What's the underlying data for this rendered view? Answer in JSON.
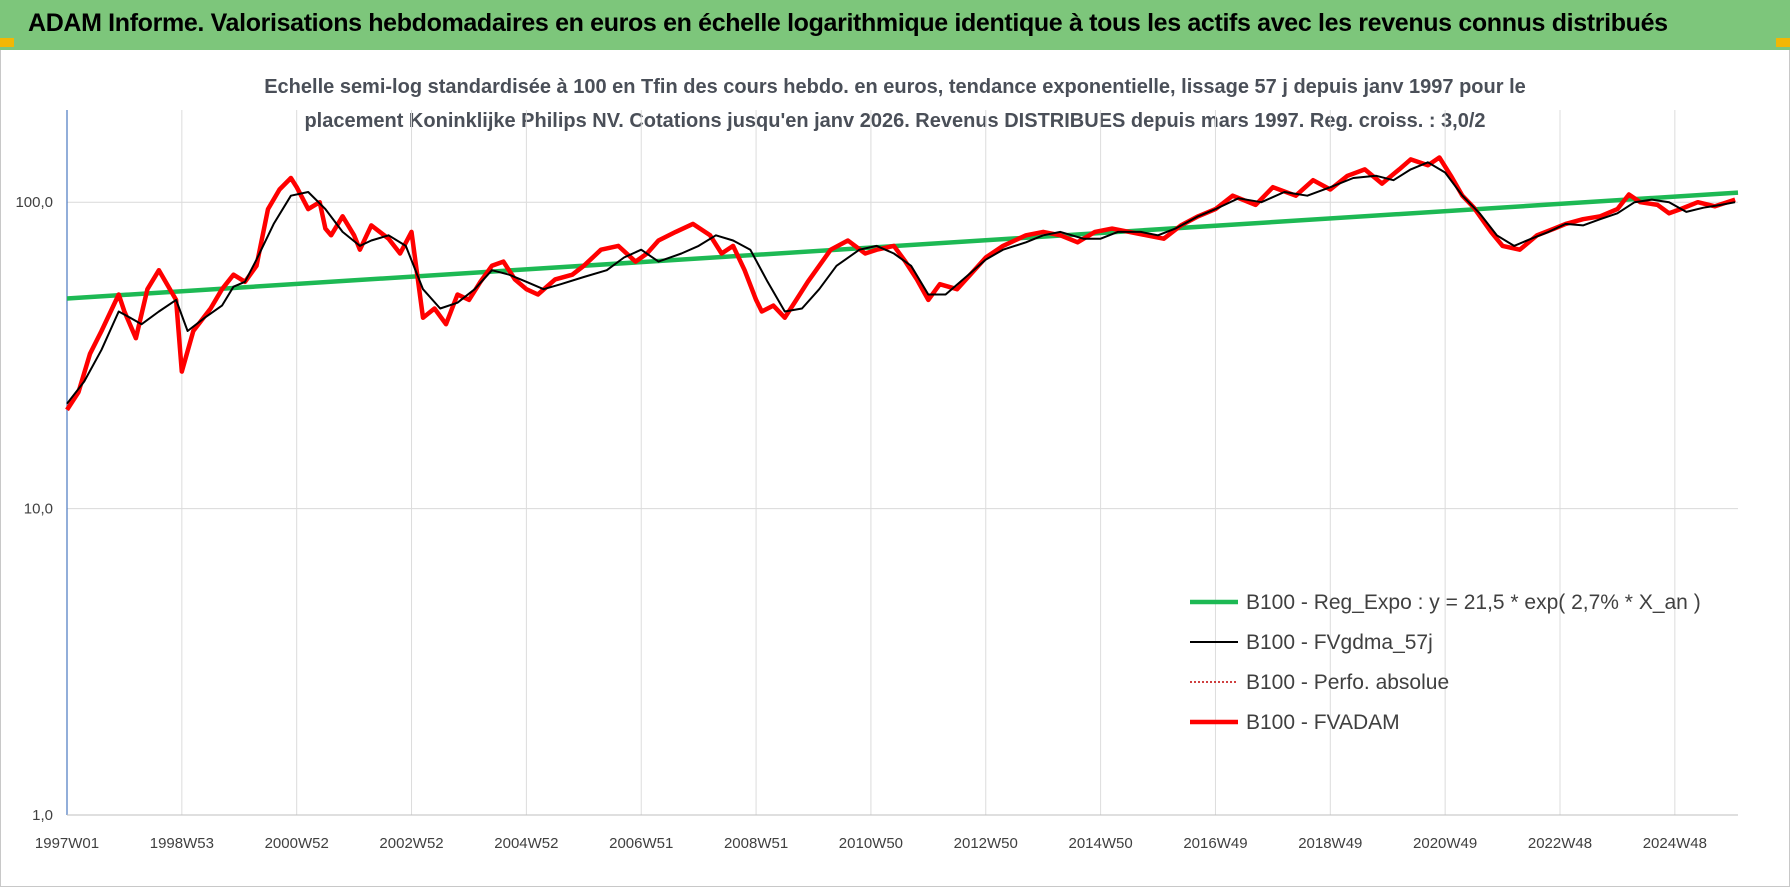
{
  "banner": {
    "title": "ADAM Informe. Valorisations hebdomadaires en euros en échelle logarithmique identique à tous les actifs avec les revenus connus distribués",
    "color": "#7dc67b"
  },
  "chart_data": {
    "type": "line",
    "title_line1": "Echelle semi-log standardisée à 100 en Tfin des cours hebdo. en euros, tendance exponentielle, lissage 57 j depuis janv 1997 pour le",
    "title_line2": "placement Koninklijke Philips NV. Cotations jusqu'en janv 2026. Revenus DISTRIBUES depuis mars 1997. Reg. croiss. : 3,0/2",
    "y_scale": "log",
    "ylim": [
      1,
      200
    ],
    "xlim": [
      1997.0,
      2026.1
    ],
    "y_ticks": [
      {
        "value": 100,
        "label": "100,0"
      },
      {
        "value": 10,
        "label": "10,0"
      },
      {
        "value": 1,
        "label": "1,0"
      }
    ],
    "x_ticks": [
      {
        "value": 1997.0,
        "label": "1997W01"
      },
      {
        "value": 1999.0,
        "label": "1998W53"
      },
      {
        "value": 2001.0,
        "label": "2000W52"
      },
      {
        "value": 2003.0,
        "label": "2002W52"
      },
      {
        "value": 2005.0,
        "label": "2004W52"
      },
      {
        "value": 2007.0,
        "label": "2006W51"
      },
      {
        "value": 2009.0,
        "label": "2008W51"
      },
      {
        "value": 2011.0,
        "label": "2010W50"
      },
      {
        "value": 2013.0,
        "label": "2012W50"
      },
      {
        "value": 2015.0,
        "label": "2014W50"
      },
      {
        "value": 2017.0,
        "label": "2016W49"
      },
      {
        "value": 2019.0,
        "label": "2018W49"
      },
      {
        "value": 2021.0,
        "label": "2020W49"
      },
      {
        "value": 2023.0,
        "label": "2022W48"
      },
      {
        "value": 2025.0,
        "label": "2024W48"
      }
    ],
    "grid": true,
    "legend_position": "bottom-right",
    "series": [
      {
        "name": "B100 - Reg_Expo : y = 21,5 * exp( 2,7% *  X_an )",
        "color": "#1db954",
        "style": "solid-thick",
        "x": [
          1997.0,
          2026.1
        ],
        "values": [
          48.5,
          107.5
        ]
      },
      {
        "name": "B100 - FVgdma_57j",
        "color": "#000000",
        "style": "solid",
        "x": [
          1997.0,
          1997.3,
          1997.6,
          1997.9,
          1998.1,
          1998.3,
          1998.6,
          1998.9,
          1999.1,
          1999.4,
          1999.7,
          1999.9,
          2000.1,
          2000.3,
          2000.6,
          2000.9,
          2001.2,
          2001.5,
          2001.8,
          2002.1,
          2002.3,
          2002.6,
          2002.9,
          2003.2,
          2003.5,
          2003.8,
          2004.1,
          2004.4,
          2004.7,
          2005.0,
          2005.3,
          2005.6,
          2006.0,
          2006.4,
          2006.7,
          2007.0,
          2007.3,
          2007.7,
          2008.0,
          2008.3,
          2008.6,
          2008.9,
          2009.2,
          2009.5,
          2009.8,
          2010.1,
          2010.4,
          2010.8,
          2011.1,
          2011.4,
          2011.7,
          2012.0,
          2012.3,
          2012.7,
          2013.0,
          2013.3,
          2013.7,
          2014.0,
          2014.3,
          2014.7,
          2015.0,
          2015.3,
          2015.7,
          2016.0,
          2016.3,
          2016.7,
          2017.0,
          2017.4,
          2017.8,
          2018.2,
          2018.6,
          2019.0,
          2019.4,
          2019.8,
          2020.1,
          2020.4,
          2020.7,
          2021.0,
          2021.3,
          2021.6,
          2021.9,
          2022.2,
          2022.5,
          2022.8,
          2023.1,
          2023.4,
          2023.7,
          2024.0,
          2024.3,
          2024.6,
          2024.9,
          2025.2,
          2025.5,
          2025.8,
          2026.05
        ],
        "values": [
          22,
          26,
          33,
          44,
          42,
          40,
          44,
          48,
          38,
          42,
          46,
          53,
          55,
          65,
          85,
          105,
          108,
          95,
          80,
          72,
          75,
          78,
          72,
          52,
          45,
          47,
          52,
          60,
          58,
          55,
          52,
          54,
          57,
          60,
          66,
          70,
          64,
          68,
          72,
          78,
          75,
          70,
          55,
          44,
          45,
          52,
          62,
          70,
          72,
          68,
          62,
          50,
          50,
          58,
          65,
          70,
          74,
          78,
          80,
          76,
          76,
          80,
          80,
          78,
          82,
          90,
          95,
          103,
          100,
          108,
          105,
          112,
          120,
          122,
          118,
          128,
          135,
          125,
          105,
          92,
          78,
          72,
          76,
          80,
          85,
          84,
          88,
          92,
          100,
          102,
          100,
          93,
          96,
          98,
          100
        ]
      },
      {
        "name": "B100 - Perfo. absolue",
        "color": "#c00000",
        "style": "dotted"
      },
      {
        "name": "B100 - FVADAM",
        "color": "#ff0000",
        "style": "solid-thick",
        "x": [
          1997.0,
          1997.2,
          1997.4,
          1997.6,
          1997.9,
          1998.0,
          1998.2,
          1998.4,
          1998.6,
          1998.9,
          1999.0,
          1999.2,
          1999.5,
          1999.7,
          1999.9,
          2000.1,
          2000.3,
          2000.5,
          2000.7,
          2000.9,
          2001.0,
          2001.2,
          2001.4,
          2001.5,
          2001.6,
          2001.8,
          2002.0,
          2002.1,
          2002.3,
          2002.6,
          2002.8,
          2003.0,
          2003.2,
          2003.4,
          2003.6,
          2003.8,
          2004.0,
          2004.2,
          2004.4,
          2004.6,
          2004.8,
          2005.0,
          2005.2,
          2005.5,
          2005.8,
          2006.0,
          2006.3,
          2006.6,
          2006.9,
          2007.1,
          2007.3,
          2007.6,
          2007.9,
          2008.2,
          2008.4,
          2008.6,
          2008.8,
          2009.0,
          2009.1,
          2009.3,
          2009.5,
          2009.7,
          2009.9,
          2010.1,
          2010.3,
          2010.6,
          2010.9,
          2011.1,
          2011.4,
          2011.6,
          2011.8,
          2012.0,
          2012.2,
          2012.5,
          2012.8,
          2013.0,
          2013.3,
          2013.7,
          2014.0,
          2014.3,
          2014.6,
          2014.9,
          2015.2,
          2015.5,
          2015.8,
          2016.1,
          2016.4,
          2016.7,
          2017.0,
          2017.3,
          2017.7,
          2018.0,
          2018.4,
          2018.7,
          2019.0,
          2019.3,
          2019.6,
          2019.9,
          2020.2,
          2020.4,
          2020.7,
          2020.9,
          2021.1,
          2021.3,
          2021.5,
          2021.8,
          2022.0,
          2022.3,
          2022.6,
          2022.9,
          2023.1,
          2023.4,
          2023.7,
          2024.0,
          2024.2,
          2024.4,
          2024.7,
          2024.9,
          2025.1,
          2025.4,
          2025.7,
          2026.05
        ],
        "values": [
          21,
          24,
          32,
          38,
          50,
          44,
          36,
          52,
          60,
          48,
          28,
          38,
          45,
          52,
          58,
          55,
          62,
          95,
          110,
          120,
          112,
          95,
          100,
          82,
          78,
          90,
          78,
          70,
          84,
          76,
          68,
          80,
          42,
          45,
          40,
          50,
          48,
          55,
          62,
          64,
          56,
          52,
          50,
          56,
          58,
          62,
          70,
          72,
          64,
          68,
          75,
          80,
          85,
          78,
          68,
          72,
          60,
          48,
          44,
          46,
          42,
          48,
          55,
          62,
          70,
          75,
          68,
          70,
          72,
          64,
          56,
          48,
          54,
          52,
          60,
          66,
          72,
          78,
          80,
          78,
          74,
          80,
          82,
          80,
          78,
          76,
          84,
          90,
          95,
          105,
          98,
          112,
          105,
          118,
          110,
          122,
          128,
          115,
          128,
          138,
          132,
          140,
          122,
          105,
          96,
          80,
          72,
          70,
          78,
          82,
          85,
          88,
          90,
          95,
          106,
          100,
          98,
          92,
          95,
          100,
          97,
          102
        ]
      }
    ]
  }
}
